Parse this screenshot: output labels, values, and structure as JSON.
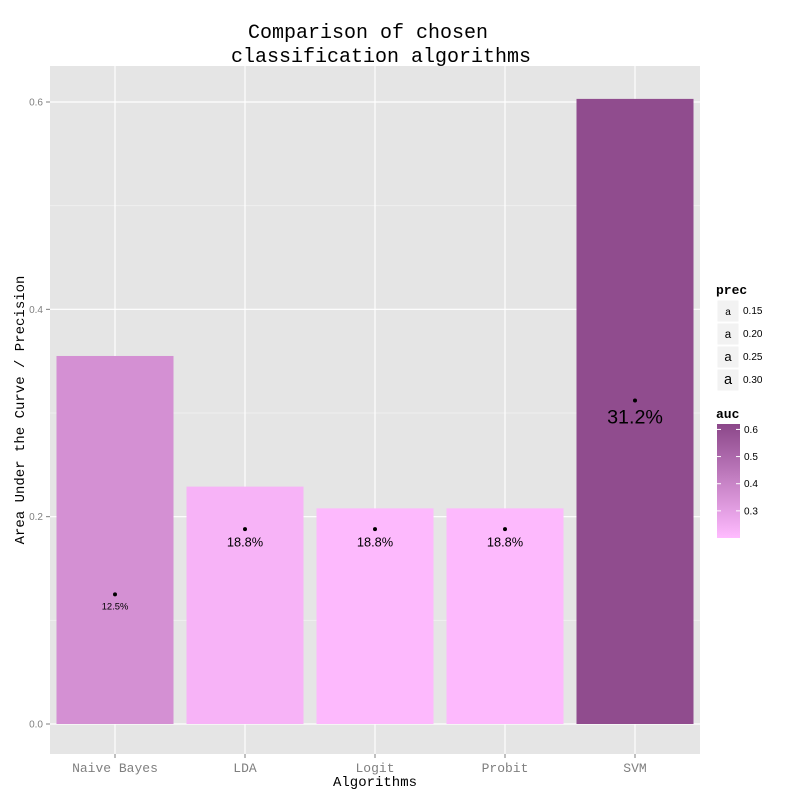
{
  "chart_data": {
    "type": "bar",
    "title_line1": "Comparison of chosen",
    "title_line2": "classification algorithms",
    "xlabel": "Algorithms",
    "ylabel": "Area Under the Curve / Precision",
    "categories": [
      "Naive Bayes",
      "LDA",
      "Logit",
      "Probit",
      "SVM"
    ],
    "values": [
      0.355,
      0.229,
      0.208,
      0.208,
      0.603
    ],
    "prec": [
      0.125,
      0.188,
      0.188,
      0.188,
      0.312
    ],
    "point_labels": [
      "12.5%",
      "18.8%",
      "18.8%",
      "18.8%",
      "31.2%"
    ],
    "ylim": [
      0,
      0.63
    ],
    "yticks": [
      0.0,
      0.2,
      0.4,
      0.6
    ],
    "ytick_labels": [
      "0.0",
      "0.2",
      "0.4",
      "0.6"
    ],
    "grid": true,
    "legend_placement": "right",
    "legend_prec": {
      "title": "prec",
      "symbol": "a",
      "entries": [
        {
          "label": "0.15",
          "value": 0.15
        },
        {
          "label": "0.20",
          "value": 0.2
        },
        {
          "label": "0.25",
          "value": 0.25
        },
        {
          "label": "0.30",
          "value": 0.3
        }
      ]
    },
    "legend_auc": {
      "title": "auc",
      "tick_labels": [
        "0.6",
        "0.5",
        "0.4",
        "0.3"
      ],
      "tick_values": [
        0.6,
        0.5,
        0.4,
        0.3
      ],
      "range": [
        0.2,
        0.62
      ]
    },
    "colors": {
      "panel_bg": "#E5E5E5",
      "grid_major": "#FFFFFF",
      "grid_minor": "#F2F2F2",
      "auc_low": "#FFBBFF",
      "auc_high": "#8B4789",
      "text": "#000000",
      "tick_text": "#7F7F7F"
    }
  }
}
